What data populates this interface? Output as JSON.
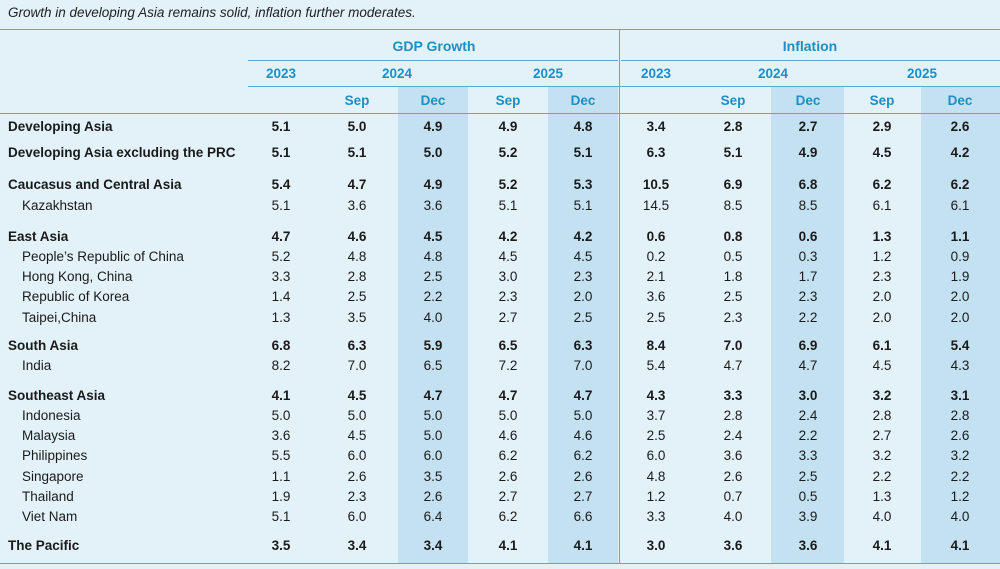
{
  "caption": "Growth in developing Asia remains solid, inflation further moderates.",
  "headers": {
    "gdp": "GDP Growth",
    "inflation": "Inflation",
    "years": [
      "2023",
      "2024",
      "2025",
      "2023",
      "2024",
      "2025"
    ],
    "months": [
      "Sep",
      "Dec",
      "Sep",
      "Dec",
      "Sep",
      "Dec",
      "Sep",
      "Dec"
    ]
  },
  "rows": [
    {
      "label": "Developing Asia",
      "bold": true,
      "values": [
        "5.1",
        "5.0",
        "4.9",
        "4.9",
        "4.8",
        "3.4",
        "2.8",
        "2.7",
        "2.9",
        "2.6"
      ]
    },
    {
      "label": "Developing Asia excluding the PRC",
      "bold": true,
      "values": [
        "5.1",
        "5.1",
        "5.0",
        "5.2",
        "5.1",
        "6.3",
        "5.1",
        "4.9",
        "4.5",
        "4.2"
      ]
    },
    {
      "label": "Caucasus and Central Asia",
      "bold": true,
      "values": [
        "5.4",
        "4.7",
        "4.9",
        "5.2",
        "5.3",
        "10.5",
        "6.9",
        "6.8",
        "6.2",
        "6.2"
      ]
    },
    {
      "label": "Kazakhstan",
      "bold": false,
      "values": [
        "5.1",
        "3.6",
        "3.6",
        "5.1",
        "5.1",
        "14.5",
        "8.5",
        "8.5",
        "6.1",
        "6.1"
      ]
    },
    {
      "label": "East Asia",
      "bold": true,
      "values": [
        "4.7",
        "4.6",
        "4.5",
        "4.2",
        "4.2",
        "0.6",
        "0.8",
        "0.6",
        "1.3",
        "1.1"
      ]
    },
    {
      "label": "People’s Republic of China",
      "bold": false,
      "values": [
        "5.2",
        "4.8",
        "4.8",
        "4.5",
        "4.5",
        "0.2",
        "0.5",
        "0.3",
        "1.2",
        "0.9"
      ]
    },
    {
      "label": "Hong Kong, China",
      "bold": false,
      "values": [
        "3.3",
        "2.8",
        "2.5",
        "3.0",
        "2.3",
        "2.1",
        "1.8",
        "1.7",
        "2.3",
        "1.9"
      ]
    },
    {
      "label": "Republic of Korea",
      "bold": false,
      "values": [
        "1.4",
        "2.5",
        "2.2",
        "2.3",
        "2.0",
        "3.6",
        "2.5",
        "2.3",
        "2.0",
        "2.0"
      ]
    },
    {
      "label": "Taipei,China",
      "bold": false,
      "values": [
        "1.3",
        "3.5",
        "4.0",
        "2.7",
        "2.5",
        "2.5",
        "2.3",
        "2.2",
        "2.0",
        "2.0"
      ]
    },
    {
      "label": "South Asia",
      "bold": true,
      "values": [
        "6.8",
        "6.3",
        "5.9",
        "6.5",
        "6.3",
        "8.4",
        "7.0",
        "6.9",
        "6.1",
        "5.4"
      ]
    },
    {
      "label": "India",
      "bold": false,
      "values": [
        "8.2",
        "7.0",
        "6.5",
        "7.2",
        "7.0",
        "5.4",
        "4.7",
        "4.7",
        "4.5",
        "4.3"
      ]
    },
    {
      "label": "Southeast Asia",
      "bold": true,
      "values": [
        "4.1",
        "4.5",
        "4.7",
        "4.7",
        "4.7",
        "4.3",
        "3.3",
        "3.0",
        "3.2",
        "3.1"
      ]
    },
    {
      "label": "Indonesia",
      "bold": false,
      "values": [
        "5.0",
        "5.0",
        "5.0",
        "5.0",
        "5.0",
        "3.7",
        "2.8",
        "2.4",
        "2.8",
        "2.8"
      ]
    },
    {
      "label": "Malaysia",
      "bold": false,
      "values": [
        "3.6",
        "4.5",
        "5.0",
        "4.6",
        "4.6",
        "2.5",
        "2.4",
        "2.2",
        "2.7",
        "2.6"
      ]
    },
    {
      "label": "Philippines",
      "bold": false,
      "values": [
        "5.5",
        "6.0",
        "6.0",
        "6.2",
        "6.2",
        "6.0",
        "3.6",
        "3.3",
        "3.2",
        "3.2"
      ]
    },
    {
      "label": "Singapore",
      "bold": false,
      "values": [
        "1.1",
        "2.6",
        "3.5",
        "2.6",
        "2.6",
        "4.8",
        "2.6",
        "2.5",
        "2.2",
        "2.2"
      ]
    },
    {
      "label": "Thailand",
      "bold": false,
      "values": [
        "1.9",
        "2.3",
        "2.6",
        "2.7",
        "2.7",
        "1.2",
        "0.7",
        "0.5",
        "1.3",
        "1.2"
      ]
    },
    {
      "label": "Viet Nam",
      "bold": false,
      "values": [
        "5.1",
        "6.0",
        "6.4",
        "6.2",
        "6.6",
        "3.3",
        "4.0",
        "3.9",
        "4.0",
        "4.0"
      ]
    },
    {
      "label": "The Pacific",
      "bold": true,
      "values": [
        "3.5",
        "3.4",
        "3.4",
        "4.1",
        "4.1",
        "3.0",
        "3.6",
        "3.6",
        "4.1",
        "4.1"
      ]
    }
  ]
}
